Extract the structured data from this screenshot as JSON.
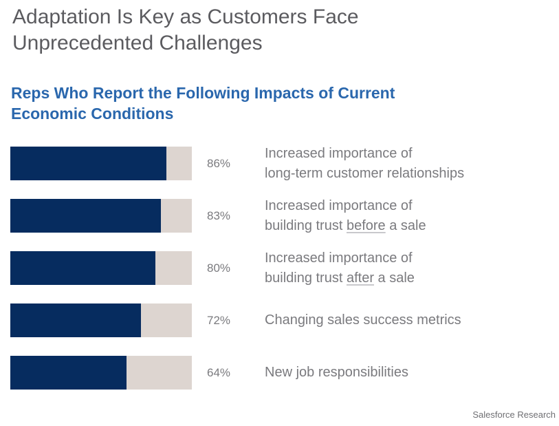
{
  "title": "Adaptation Is Key as Customers Face Unprecedented Challenges",
  "source": "Salesforce Research",
  "colors": {
    "fill": "#062c5f",
    "track": "#ddd5d0",
    "subtitle": "#2a67ad",
    "title": "#5b5b5f",
    "text": "#7a7a7e"
  },
  "chart_data": {
    "type": "bar",
    "orientation": "horizontal",
    "title": "Reps Who Report the Following Impacts of Current Economic Conditions",
    "xlabel": "",
    "ylabel": "",
    "xlim": [
      0,
      100
    ],
    "grid": false,
    "categories": [
      {
        "line1": "Increased importance of",
        "line2_pre": "long-term customer relationships",
        "line2_u": "",
        "line2_post": ""
      },
      {
        "line1": "Increased importance of",
        "line2_pre": "building trust ",
        "line2_u": "before",
        "line2_post": " a sale"
      },
      {
        "line1": "Increased importance of",
        "line2_pre": "building trust ",
        "line2_u": "after",
        "line2_post": " a sale"
      },
      {
        "line1": "Changing sales success metrics",
        "line2_pre": "",
        "line2_u": "",
        "line2_post": ""
      },
      {
        "line1": "New job responsibilities",
        "line2_pre": "",
        "line2_u": "",
        "line2_post": ""
      }
    ],
    "values": [
      86,
      83,
      80,
      72,
      64
    ],
    "value_labels": [
      "86%",
      "83%",
      "80%",
      "72%",
      "64%"
    ]
  }
}
